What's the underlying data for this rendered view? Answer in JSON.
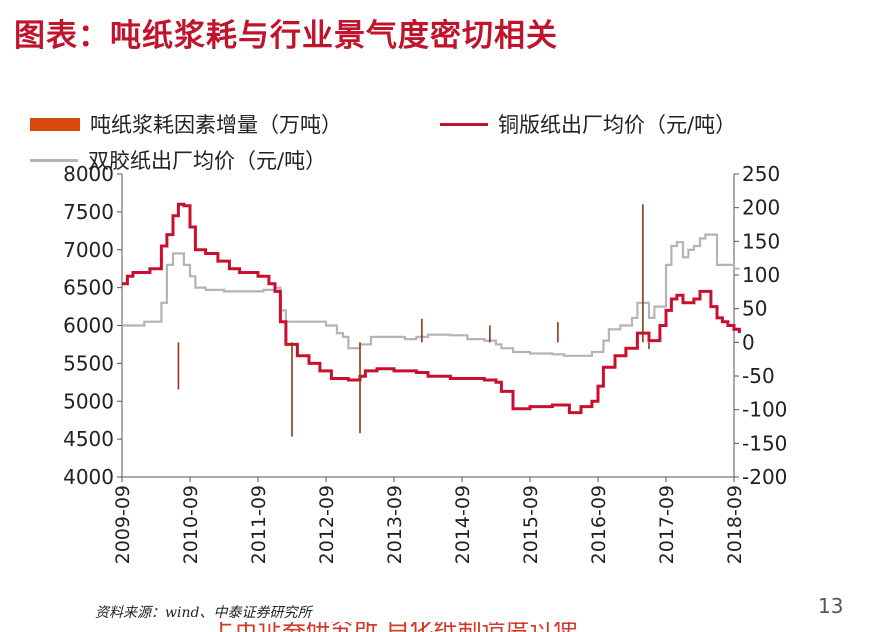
{
  "title": "图表：吨纸浆耗与行业景气度密切相关",
  "legend": {
    "bar_label": "吨纸浆耗因素增量（万吨）",
    "line1_label": "铜版纸出厂均价（元/吨）",
    "line2_label": "双胶纸出厂均价（元/吨）"
  },
  "colors": {
    "bar": "#d9480f",
    "copper": "#c8102e",
    "offset": "#b4b4b4",
    "title": "#c0142c"
  },
  "source": "资料来源：wind、中泰证券研究所",
  "page_number": "13",
  "footer_partial": "上市证券研究所 自化纸制造度过使",
  "chart_data": {
    "type": "line",
    "x_ticks": [
      "2009-09",
      "2010-09",
      "2011-09",
      "2012-09",
      "2013-09",
      "2014-09",
      "2015-09",
      "2016-09",
      "2017-09",
      "2018-09"
    ],
    "x_range": [
      2009.67,
      2018.67
    ],
    "ylim_left": [
      4000,
      8000
    ],
    "yticks_left": [
      4000,
      4500,
      5000,
      5500,
      6000,
      6500,
      7000,
      7500,
      8000
    ],
    "ylim_right": [
      -200,
      250
    ],
    "yticks_right": [
      -200,
      -150,
      -100,
      -50,
      0,
      50,
      100,
      150,
      200,
      250
    ],
    "grid": false,
    "legend_position": "top",
    "series": [
      {
        "name": "铜版纸出厂均价（元/吨）",
        "axis": "left",
        "type": "line",
        "points": [
          [
            2009.67,
            6550
          ],
          [
            2009.75,
            6650
          ],
          [
            2009.83,
            6700
          ],
          [
            2010.0,
            6700
          ],
          [
            2010.08,
            6750
          ],
          [
            2010.17,
            6750
          ],
          [
            2010.25,
            7050
          ],
          [
            2010.33,
            7200
          ],
          [
            2010.42,
            7450
          ],
          [
            2010.5,
            7600
          ],
          [
            2010.58,
            7580
          ],
          [
            2010.67,
            7300
          ],
          [
            2010.75,
            7000
          ],
          [
            2010.9,
            6950
          ],
          [
            2011.08,
            6850
          ],
          [
            2011.25,
            6750
          ],
          [
            2011.4,
            6700
          ],
          [
            2011.67,
            6650
          ],
          [
            2011.83,
            6550
          ],
          [
            2011.92,
            6450
          ],
          [
            2012.0,
            6050
          ],
          [
            2012.08,
            5750
          ],
          [
            2012.25,
            5600
          ],
          [
            2012.42,
            5500
          ],
          [
            2012.58,
            5400
          ],
          [
            2012.75,
            5300
          ],
          [
            2013.0,
            5280
          ],
          [
            2013.17,
            5330
          ],
          [
            2013.25,
            5400
          ],
          [
            2013.42,
            5430
          ],
          [
            2013.67,
            5400
          ],
          [
            2014.0,
            5380
          ],
          [
            2014.17,
            5330
          ],
          [
            2014.5,
            5300
          ],
          [
            2015.0,
            5280
          ],
          [
            2015.17,
            5250
          ],
          [
            2015.25,
            5130
          ],
          [
            2015.42,
            4900
          ],
          [
            2015.67,
            4930
          ],
          [
            2016.0,
            4950
          ],
          [
            2016.25,
            4850
          ],
          [
            2016.42,
            4930
          ],
          [
            2016.58,
            5000
          ],
          [
            2016.67,
            5200
          ],
          [
            2016.75,
            5450
          ],
          [
            2016.92,
            5600
          ],
          [
            2017.08,
            5700
          ],
          [
            2017.25,
            5900
          ],
          [
            2017.42,
            5800
          ],
          [
            2017.58,
            6000
          ],
          [
            2017.67,
            6200
          ],
          [
            2017.75,
            6350
          ],
          [
            2017.83,
            6400
          ],
          [
            2017.92,
            6300
          ],
          [
            2018.08,
            6350
          ],
          [
            2018.17,
            6450
          ],
          [
            2018.25,
            6450
          ],
          [
            2018.33,
            6250
          ],
          [
            2018.42,
            6100
          ],
          [
            2018.5,
            6050
          ],
          [
            2018.58,
            6000
          ],
          [
            2018.67,
            5950
          ],
          [
            2018.75,
            5900
          ]
        ]
      },
      {
        "name": "双胶纸出厂均价（元/吨）",
        "axis": "left",
        "type": "line",
        "points": [
          [
            2009.67,
            6000
          ],
          [
            2010.0,
            6050
          ],
          [
            2010.17,
            6050
          ],
          [
            2010.25,
            6300
          ],
          [
            2010.33,
            6800
          ],
          [
            2010.42,
            6950
          ],
          [
            2010.5,
            6950
          ],
          [
            2010.58,
            6800
          ],
          [
            2010.67,
            6650
          ],
          [
            2010.75,
            6500
          ],
          [
            2010.9,
            6470
          ],
          [
            2011.17,
            6450
          ],
          [
            2011.5,
            6450
          ],
          [
            2011.75,
            6470
          ],
          [
            2011.92,
            6500
          ],
          [
            2012.0,
            6200
          ],
          [
            2012.08,
            6050
          ],
          [
            2012.25,
            6050
          ],
          [
            2012.42,
            6050
          ],
          [
            2012.67,
            6000
          ],
          [
            2012.83,
            5900
          ],
          [
            2012.92,
            5850
          ],
          [
            2013.0,
            5700
          ],
          [
            2013.17,
            5750
          ],
          [
            2013.33,
            5850
          ],
          [
            2013.67,
            5850
          ],
          [
            2013.83,
            5820
          ],
          [
            2014.0,
            5850
          ],
          [
            2014.17,
            5880
          ],
          [
            2014.5,
            5870
          ],
          [
            2014.75,
            5820
          ],
          [
            2015.0,
            5800
          ],
          [
            2015.17,
            5750
          ],
          [
            2015.25,
            5700
          ],
          [
            2015.42,
            5650
          ],
          [
            2015.67,
            5630
          ],
          [
            2016.0,
            5620
          ],
          [
            2016.17,
            5600
          ],
          [
            2016.42,
            5600
          ],
          [
            2016.58,
            5650
          ],
          [
            2016.75,
            5800
          ],
          [
            2016.83,
            5950
          ],
          [
            2017.0,
            6000
          ],
          [
            2017.17,
            6100
          ],
          [
            2017.25,
            6300
          ],
          [
            2017.42,
            6100
          ],
          [
            2017.5,
            6250
          ],
          [
            2017.67,
            6800
          ],
          [
            2017.75,
            7050
          ],
          [
            2017.83,
            7100
          ],
          [
            2017.92,
            6900
          ],
          [
            2018.0,
            7000
          ],
          [
            2018.08,
            7050
          ],
          [
            2018.17,
            7150
          ],
          [
            2018.25,
            7200
          ],
          [
            2018.33,
            7200
          ],
          [
            2018.42,
            6800
          ],
          [
            2018.58,
            6800
          ],
          [
            2018.67,
            6750
          ],
          [
            2018.75,
            6750
          ]
        ]
      },
      {
        "name": "吨纸浆耗因素增量（万吨）",
        "axis": "right",
        "type": "bar",
        "points": [
          [
            2010.5,
            -70
          ],
          [
            2012.17,
            -140
          ],
          [
            2013.17,
            -135
          ],
          [
            2014.08,
            35
          ],
          [
            2015.08,
            25
          ],
          [
            2016.08,
            30
          ],
          [
            2017.33,
            205
          ],
          [
            2017.42,
            -10
          ]
        ]
      }
    ]
  }
}
